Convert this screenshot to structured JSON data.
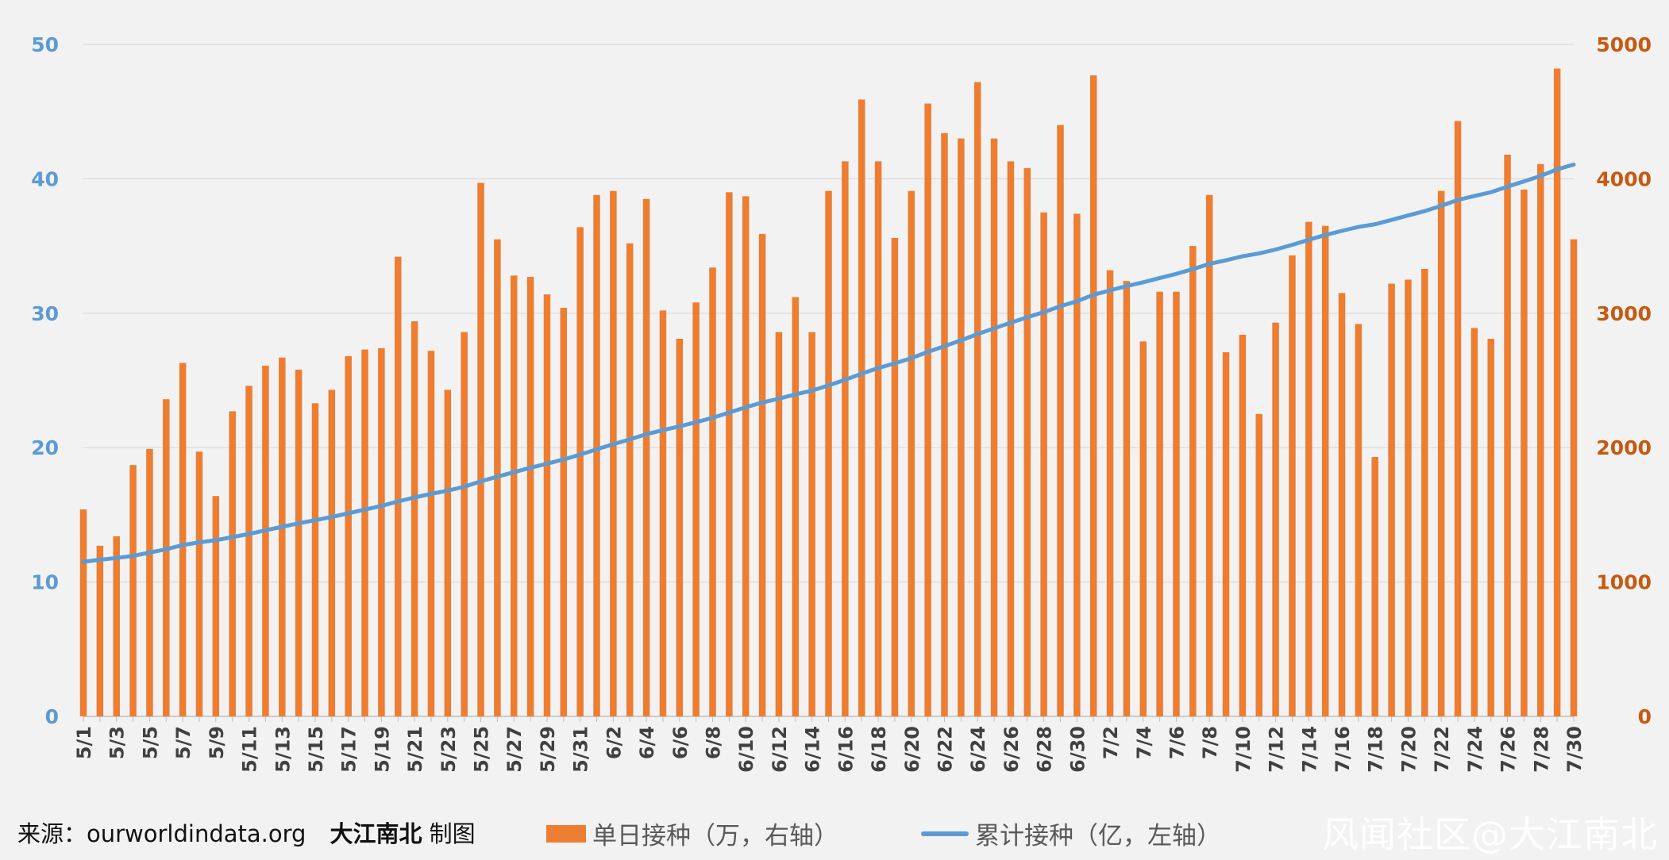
{
  "chart_data": {
    "type": "bar",
    "categories": [
      "5/1",
      "5/2",
      "5/3",
      "5/4",
      "5/5",
      "5/6",
      "5/7",
      "5/8",
      "5/9",
      "5/10",
      "5/11",
      "5/12",
      "5/13",
      "5/14",
      "5/15",
      "5/16",
      "5/17",
      "5/18",
      "5/19",
      "5/20",
      "5/21",
      "5/22",
      "5/23",
      "5/24",
      "5/25",
      "5/26",
      "5/27",
      "5/28",
      "5/29",
      "5/30",
      "5/31",
      "6/1",
      "6/2",
      "6/3",
      "6/4",
      "6/5",
      "6/6",
      "6/7",
      "6/8",
      "6/9",
      "6/10",
      "6/11",
      "6/12",
      "6/13",
      "6/14",
      "6/15",
      "6/16",
      "6/17",
      "6/18",
      "6/19",
      "6/20",
      "6/21",
      "6/22",
      "6/23",
      "6/24",
      "6/25",
      "6/26",
      "6/27",
      "6/28",
      "6/29",
      "6/30",
      "7/1",
      "7/2",
      "7/3",
      "7/4",
      "7/5",
      "7/6",
      "7/7",
      "7/8",
      "7/9",
      "7/10",
      "7/11",
      "7/12",
      "7/13",
      "7/14",
      "7/15",
      "7/16",
      "7/17",
      "7/18",
      "7/19",
      "7/20",
      "7/21",
      "7/22",
      "7/23",
      "7/24",
      "7/25",
      "7/26",
      "7/27",
      "7/28",
      "7/29",
      "7/30"
    ],
    "series": [
      {
        "name": "单日接种（万，右轴）",
        "type": "bar",
        "axis": "right",
        "color": "#ed7d31",
        "values": [
          1540,
          1270,
          1340,
          1870,
          1990,
          2360,
          2630,
          1970,
          1640,
          2270,
          2460,
          2610,
          2670,
          2580,
          2330,
          2430,
          2680,
          2730,
          2740,
          3420,
          2940,
          2720,
          2430,
          2860,
          3970,
          3550,
          3280,
          3270,
          3140,
          3040,
          3640,
          3880,
          3910,
          3520,
          3850,
          3020,
          2810,
          3080,
          3340,
          3900,
          3870,
          3590,
          2860,
          3120,
          2860,
          3910,
          4130,
          4590,
          4130,
          3560,
          3910,
          4560,
          4340,
          4300,
          4720,
          4300,
          4130,
          4080,
          3750,
          4400,
          3740,
          4770,
          3320,
          3240,
          2790,
          3160,
          3160,
          3500,
          3880,
          2710,
          2840,
          2250,
          2930,
          3430,
          3680,
          3650,
          3150,
          2920,
          1930,
          3220,
          3250,
          3330,
          3910,
          4430,
          2890,
          2810,
          4180,
          3920,
          4110,
          4820,
          3550
        ]
      },
      {
        "name": "累计接种（亿，左轴）",
        "type": "line",
        "axis": "left",
        "color": "#5b9bd5",
        "values": [
          11.5,
          11.66,
          11.79,
          11.94,
          12.19,
          12.44,
          12.75,
          12.95,
          13.11,
          13.34,
          13.58,
          13.85,
          14.11,
          14.37,
          14.6,
          14.84,
          15.11,
          15.39,
          15.66,
          16.0,
          16.29,
          16.56,
          16.8,
          17.09,
          17.49,
          17.84,
          18.17,
          18.5,
          18.81,
          19.12,
          19.48,
          19.87,
          20.26,
          20.61,
          21.0,
          21.3,
          21.58,
          21.89,
          22.22,
          22.61,
          23.0,
          23.36,
          23.64,
          23.96,
          24.24,
          24.63,
          25.05,
          25.5,
          25.92,
          26.27,
          26.66,
          27.12,
          27.55,
          27.98,
          28.45,
          28.88,
          29.3,
          29.7,
          30.08,
          30.52,
          30.89,
          31.37,
          31.7,
          32.02,
          32.3,
          32.62,
          32.93,
          33.28,
          33.67,
          33.94,
          34.23,
          34.45,
          34.74,
          35.09,
          35.46,
          35.82,
          36.13,
          36.42,
          36.62,
          36.94,
          37.27,
          37.6,
          37.99,
          38.43,
          38.72,
          39.0,
          39.42,
          39.81,
          40.22,
          40.7,
          41.06
        ]
      }
    ],
    "x_tick_labels": [
      "5/1",
      "5/3",
      "5/5",
      "5/7",
      "5/9",
      "5/11",
      "5/13",
      "5/15",
      "5/17",
      "5/19",
      "5/21",
      "5/23",
      "5/25",
      "5/27",
      "5/29",
      "5/31",
      "6/2",
      "6/4",
      "6/6",
      "6/8",
      "6/10",
      "6/12",
      "6/14",
      "6/16",
      "6/18",
      "6/20",
      "6/22",
      "6/24",
      "6/26",
      "6/28",
      "6/30",
      "7/2",
      "7/4",
      "7/6",
      "7/8",
      "7/10",
      "7/12",
      "7/14",
      "7/16",
      "7/18",
      "7/20",
      "7/22",
      "7/24",
      "7/26",
      "7/28",
      "7/30"
    ],
    "y_left": {
      "ticks": [
        "0",
        "10",
        "20",
        "30",
        "40",
        "50"
      ],
      "range": [
        0,
        50
      ],
      "color": "#5b9bd5"
    },
    "y_right": {
      "ticks": [
        "0",
        "1000",
        "2000",
        "3000",
        "4000",
        "5000"
      ],
      "range": [
        0,
        5000
      ],
      "color": "#c55a11"
    },
    "grid": true,
    "legend_position": "bottom"
  },
  "footer": {
    "source_prefix": "来源：ourworldindata.org",
    "source_brand": "大江南北",
    "source_suffix": " 制图",
    "legend_bar_label": "单日接种（万，右轴）",
    "legend_line_label": "累计接种（亿，左轴）",
    "watermark": "风闻社区@大江南北"
  }
}
